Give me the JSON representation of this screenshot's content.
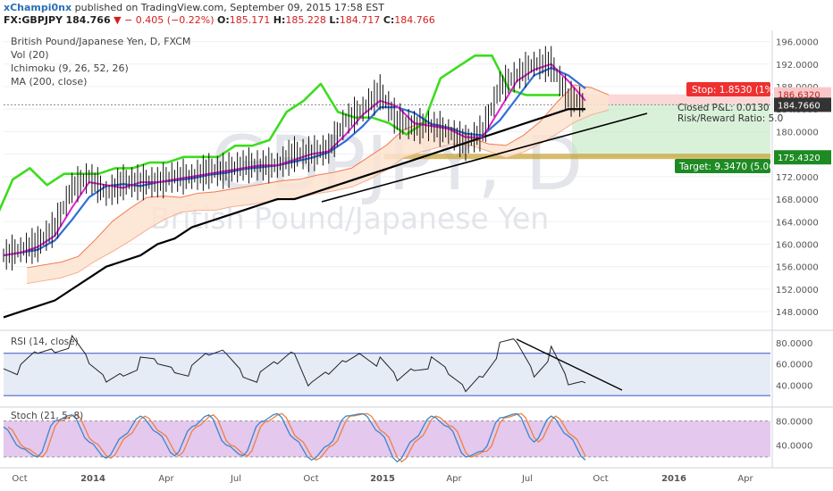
{
  "header": {
    "author": "xChampi0nx",
    "published_text": "published on TradingView.com, September 09, 2015 17:58 EST",
    "symbol": "FX:GBPJPY",
    "last": "184.766",
    "change": "− 0.405 (−0.22%)",
    "open_label": "O:",
    "open": "185.171",
    "high_label": "H:",
    "high": "185.228",
    "low_label": "L:",
    "low": "184.717",
    "close_label": "C:",
    "close": "184.766"
  },
  "legend": {
    "title": "British Pound/Japanese Yen, D, FXCM",
    "items": [
      "Vol (20)",
      "Ichimoku (9, 26, 52, 26)",
      "MA (200, close)"
    ]
  },
  "watermark": {
    "big": "GBPJPY, D",
    "sub": "British Pound/Japanese Yen"
  },
  "colors": {
    "price": "#111111",
    "ma": "#000000",
    "tenkan": "#e020d0",
    "kijun": "#2f6fd8",
    "chikou": "#3cdc1e",
    "span_a": "#f07850",
    "span_b": "#f5b090",
    "cloud": "#fde3d0",
    "stop_zone": "#f8b8b8",
    "target_zone": "#bfe8bf",
    "support": "#c8a030",
    "rsi_band": "#e6ecf6",
    "rsi_level": "#3c50c8",
    "stoch_band": "#e4c8ee",
    "stoch_k": "#3c86c8",
    "stoch_d": "#ee8040",
    "grid": "#eef0f4",
    "axis_text": "#555555"
  },
  "badges": {
    "stop": "Stop: 1.8530 (1%)",
    "stop_price": "186.6320",
    "last_price": "184.7660",
    "pnl": "Closed P&L: 0.0130",
    "rr": "Risk/Reward Ratio: 5.0",
    "target": "Target: 9.3470 (5.06%)",
    "target_price": "175.4320"
  },
  "rsi_label": "RSI (14, close)",
  "stoch_label": "Stoch (21, 5, 8)",
  "chart_data": [
    {
      "id": "price",
      "type": "line",
      "title": "British Pound/Japanese Yen, D, FXCM",
      "x": [
        "2013-09-24",
        "2013-10-15",
        "2013-11-05",
        "2013-11-26",
        "2013-12-17",
        "2014-01-07",
        "2014-01-28",
        "2014-02-18",
        "2014-03-11",
        "2014-04-01",
        "2014-04-22",
        "2014-05-13",
        "2014-06-03",
        "2014-06-24",
        "2014-07-15",
        "2014-08-05",
        "2014-08-26",
        "2014-09-16",
        "2014-10-07",
        "2014-10-28",
        "2014-11-18",
        "2014-12-09",
        "2014-12-30",
        "2015-01-20",
        "2015-02-10",
        "2015-03-03",
        "2015-03-24",
        "2015-04-14",
        "2015-05-05",
        "2015-05-26",
        "2015-06-16",
        "2015-07-07",
        "2015-07-28",
        "2015-08-18",
        "2015-09-08"
      ],
      "series": [
        {
          "name": "Price",
          "values": [
            158,
            159,
            160,
            163,
            170,
            172,
            169,
            171,
            171,
            171,
            172,
            172,
            173,
            173,
            174,
            174,
            174,
            176,
            176,
            177,
            182,
            184,
            187,
            182,
            181,
            181,
            180,
            178,
            180,
            188,
            190,
            192,
            192,
            186,
            185
          ]
        },
        {
          "name": "MA (200, close)",
          "values": [
            147,
            148,
            149,
            150,
            152,
            154,
            156,
            157,
            158,
            160,
            161,
            163,
            164,
            165,
            166,
            167,
            168,
            168,
            169,
            170,
            171,
            172,
            173,
            174,
            175,
            176,
            177,
            178,
            179,
            180,
            181,
            182,
            183,
            184,
            184
          ]
        }
      ],
      "y_ticks": [
        "196.0000",
        "192.0000",
        "188.0000",
        "184.0000",
        "180.0000",
        "176.0000",
        "172.0000",
        "168.0000",
        "164.0000",
        "160.0000",
        "156.0000",
        "152.0000",
        "148.0000"
      ],
      "ylim": [
        145,
        198
      ]
    },
    {
      "id": "rsi",
      "type": "line",
      "title": "RSI (14, close)",
      "x": [
        "2013-09-24",
        "2013-10-15",
        "2013-11-05",
        "2013-11-26",
        "2013-12-17",
        "2014-01-07",
        "2014-01-28",
        "2014-02-18",
        "2014-03-11",
        "2014-04-01",
        "2014-04-22",
        "2014-05-13",
        "2014-06-03",
        "2014-06-24",
        "2014-07-15",
        "2014-08-05",
        "2014-08-26",
        "2014-09-16",
        "2014-10-07",
        "2014-10-28",
        "2014-11-18",
        "2014-12-09",
        "2014-12-30",
        "2015-01-20",
        "2015-02-10",
        "2015-03-03",
        "2015-03-24",
        "2015-04-14",
        "2015-05-05",
        "2015-05-26",
        "2015-06-16",
        "2015-07-07",
        "2015-07-28",
        "2015-08-18",
        "2015-09-08"
      ],
      "series": [
        {
          "name": "RSI",
          "values": [
            62,
            55,
            70,
            75,
            80,
            58,
            45,
            55,
            62,
            60,
            56,
            52,
            66,
            72,
            54,
            48,
            60,
            74,
            36,
            48,
            64,
            74,
            62,
            44,
            58,
            60,
            48,
            36,
            54,
            76,
            80,
            52,
            70,
            38,
            42
          ]
        }
      ],
      "levels": [
        70,
        30
      ],
      "y_ticks": [
        "80.0000",
        "60.0000",
        "40.0000"
      ],
      "ylim": [
        20,
        90
      ]
    },
    {
      "id": "stoch",
      "type": "line",
      "title": "Stoch (21, 5, 8)",
      "x": [
        "2013-09-24",
        "2013-10-15",
        "2013-11-05",
        "2013-11-26",
        "2013-12-17",
        "2014-01-07",
        "2014-01-28",
        "2014-02-18",
        "2014-03-11",
        "2014-04-01",
        "2014-04-22",
        "2014-05-13",
        "2014-06-03",
        "2014-06-24",
        "2014-07-15",
        "2014-08-05",
        "2014-08-26",
        "2014-09-16",
        "2014-10-07",
        "2014-10-28",
        "2014-11-18",
        "2014-12-09",
        "2014-12-30",
        "2015-01-20",
        "2015-02-10",
        "2015-03-03",
        "2015-03-24",
        "2015-04-14",
        "2015-05-05",
        "2015-05-26",
        "2015-06-16",
        "2015-07-07",
        "2015-07-28",
        "2015-08-18",
        "2015-09-08"
      ],
      "series": [
        {
          "name": "%K",
          "values": [
            70,
            35,
            20,
            80,
            90,
            45,
            18,
            55,
            88,
            60,
            22,
            70,
            90,
            40,
            22,
            78,
            92,
            50,
            15,
            40,
            88,
            92,
            60,
            12,
            50,
            88,
            70,
            20,
            30,
            85,
            92,
            45,
            88,
            55,
            15
          ]
        }
      ],
      "levels": [
        80,
        20
      ],
      "y_ticks": [
        "80.0000",
        "40.0000"
      ],
      "ylim": [
        5,
        100
      ]
    }
  ],
  "x_ticks": [
    "Oct",
    "2014",
    "Apr",
    "Jul",
    "Oct",
    "2015",
    "Apr",
    "Jul",
    "Oct",
    "2016",
    "Apr"
  ]
}
